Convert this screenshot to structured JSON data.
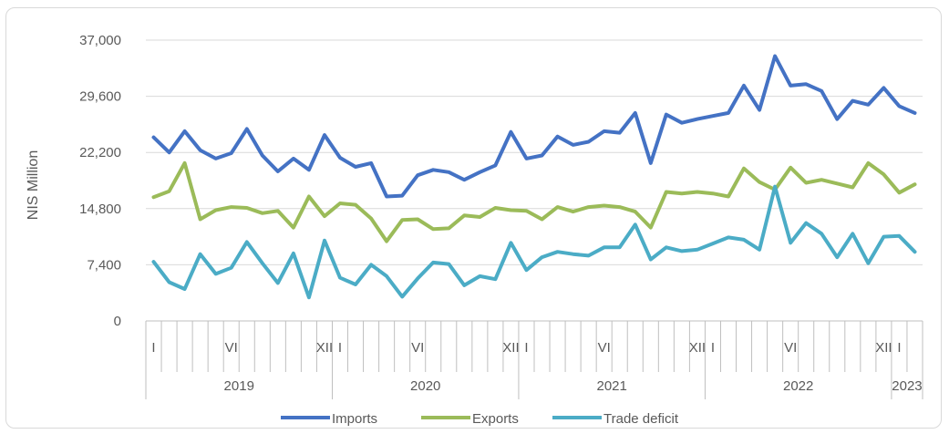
{
  "chart_data": {
    "type": "line",
    "ylabel": "NIS Million",
    "ylim": [
      0,
      37000
    ],
    "yticks": [
      0,
      7400,
      14800,
      22200,
      29600,
      37000
    ],
    "ytick_labels": [
      "0",
      "7,400",
      "14,800",
      "22,200",
      "29,600",
      "37,000"
    ],
    "grid": "horizontal",
    "legend_position": "bottom",
    "month_markers": [
      {
        "index": 0,
        "label": "I"
      },
      {
        "index": 5,
        "label": "VI"
      },
      {
        "index": 11,
        "label": "XII"
      },
      {
        "index": 12,
        "label": "I"
      },
      {
        "index": 17,
        "label": "VI"
      },
      {
        "index": 23,
        "label": "XII"
      },
      {
        "index": 24,
        "label": "I"
      },
      {
        "index": 29,
        "label": "VI"
      },
      {
        "index": 35,
        "label": "XII"
      },
      {
        "index": 36,
        "label": "I"
      },
      {
        "index": 41,
        "label": "VI"
      },
      {
        "index": 47,
        "label": "XII"
      },
      {
        "index": 48,
        "label": "I"
      }
    ],
    "years": [
      {
        "label": "2019",
        "start": 0,
        "months": 12
      },
      {
        "label": "2020",
        "start": 12,
        "months": 12
      },
      {
        "label": "2021",
        "start": 24,
        "months": 12
      },
      {
        "label": "2022",
        "start": 36,
        "months": 12
      },
      {
        "label": "2023",
        "start": 48,
        "months": 2
      }
    ],
    "series": [
      {
        "name": "Imports",
        "color": "#4472c4",
        "values": [
          24200,
          22200,
          25000,
          22500,
          21400,
          22100,
          25300,
          21800,
          19700,
          21400,
          19900,
          24500,
          21500,
          20300,
          20800,
          16400,
          16500,
          19200,
          19900,
          19600,
          18600,
          19600,
          20500,
          24900,
          21400,
          21800,
          24300,
          23200,
          23600,
          25000,
          24800,
          27400,
          20800,
          27200,
          26100,
          26600,
          27000,
          27400,
          31000,
          27800,
          34900,
          31000,
          31200,
          30300,
          26600,
          29000,
          28500,
          30700,
          28300,
          27400
        ]
      },
      {
        "name": "Exports",
        "color": "#9bbb59",
        "values": [
          16300,
          17100,
          20800,
          13400,
          14600,
          15000,
          14900,
          14200,
          14500,
          12300,
          16400,
          13800,
          15500,
          15300,
          13500,
          10500,
          13300,
          13400,
          12100,
          12200,
          13900,
          13700,
          14900,
          14600,
          14500,
          13400,
          15000,
          14400,
          15000,
          15200,
          15000,
          14400,
          12300,
          17000,
          16800,
          17000,
          16800,
          16400,
          20100,
          18300,
          17300,
          20200,
          18200,
          18600,
          18100,
          17600,
          20800,
          19300,
          16900,
          18000
        ]
      },
      {
        "name": "Trade deficit",
        "color": "#4bacc6",
        "values": [
          7800,
          5100,
          4200,
          8800,
          6200,
          7000,
          10400,
          7600,
          5000,
          8900,
          3100,
          10600,
          5700,
          4800,
          7400,
          5900,
          3200,
          5600,
          7700,
          7500,
          4700,
          5900,
          5500,
          10300,
          6700,
          8400,
          9100,
          8800,
          8600,
          9700,
          9700,
          12700,
          8100,
          9700,
          9200,
          9400,
          10200,
          11000,
          10700,
          9400,
          17700,
          10300,
          12900,
          11500,
          8400,
          11500,
          7600,
          11100,
          11200,
          9100
        ]
      }
    ]
  }
}
